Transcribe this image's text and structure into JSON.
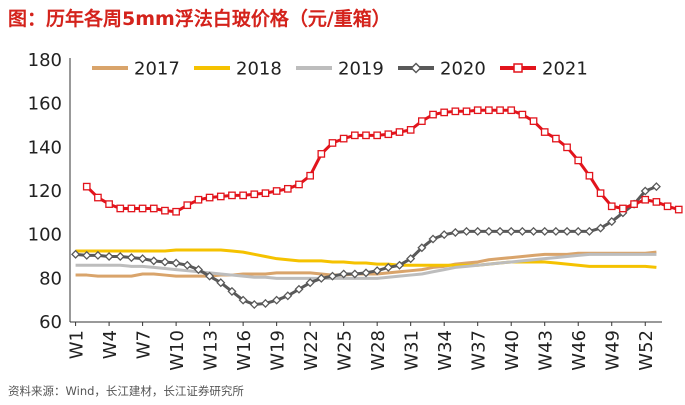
{
  "header": {
    "title": "图：历年各周5mm浮法白玻价格（元/重箱）"
  },
  "footer": {
    "source": "资料来源：Wind，长江建材，长江证券研究所"
  },
  "chart_data": {
    "type": "line",
    "title": "图：历年各周5mm浮法白玻价格（元/重箱）",
    "xlabel": "",
    "ylabel": "",
    "ylim": [
      60,
      180
    ],
    "yticks": [
      60,
      80,
      100,
      120,
      140,
      160,
      180
    ],
    "grid": false,
    "legend_position": "top",
    "x_tick_labels": [
      "W1",
      "W4",
      "W7",
      "W10",
      "W13",
      "W16",
      "W19",
      "W22",
      "W25",
      "W28",
      "W31",
      "W34",
      "W37",
      "W40",
      "W43",
      "W46",
      "W49",
      "W52"
    ],
    "x_tick_weeks": [
      1,
      4,
      7,
      10,
      13,
      16,
      19,
      22,
      25,
      28,
      31,
      34,
      37,
      40,
      43,
      46,
      49,
      52
    ],
    "series": [
      {
        "name": "2017",
        "color": "#d9a46b",
        "marker": "none",
        "start_week": 1,
        "values": [
          81.5,
          81.5,
          81.0,
          81.0,
          81.0,
          81.0,
          82.0,
          82.0,
          81.5,
          81.0,
          81.0,
          81.0,
          81.0,
          81.5,
          81.5,
          82.0,
          82.0,
          82.0,
          82.5,
          82.5,
          82.5,
          82.5,
          82.0,
          81.5,
          81.5,
          82.0,
          82.0,
          82.0,
          82.5,
          83.0,
          83.5,
          84.0,
          85.0,
          85.5,
          86.5,
          87.0,
          87.5,
          88.5,
          89.0,
          89.5,
          90.0,
          90.5,
          91.0,
          91.0,
          91.0,
          91.5,
          91.5,
          91.5,
          91.5,
          91.5,
          91.5,
          91.5,
          92.0
        ]
      },
      {
        "name": "2018",
        "color": "#f5c200",
        "marker": "none",
        "start_week": 1,
        "values": [
          92.5,
          92.5,
          92.5,
          92.5,
          92.5,
          92.5,
          92.5,
          92.5,
          92.5,
          93.0,
          93.0,
          93.0,
          93.0,
          93.0,
          92.5,
          92.0,
          91.0,
          90.0,
          89.0,
          88.5,
          88.0,
          88.0,
          88.0,
          87.5,
          87.5,
          87.0,
          87.0,
          86.5,
          86.5,
          86.0,
          86.0,
          86.0,
          86.0,
          86.0,
          86.0,
          86.0,
          86.0,
          86.5,
          87.0,
          87.5,
          87.5,
          87.5,
          87.5,
          87.0,
          86.5,
          86.0,
          85.5,
          85.5,
          85.5,
          85.5,
          85.5,
          85.5,
          85.0
        ]
      },
      {
        "name": "2019",
        "color": "#bdbdbd",
        "marker": "none",
        "start_week": 1,
        "values": [
          86.0,
          86.0,
          86.0,
          86.0,
          86.0,
          85.5,
          85.5,
          85.0,
          84.5,
          84.0,
          83.5,
          83.0,
          82.5,
          82.0,
          81.5,
          81.0,
          80.5,
          80.5,
          80.0,
          80.0,
          80.0,
          80.0,
          80.0,
          80.0,
          80.0,
          80.0,
          80.0,
          80.0,
          80.5,
          81.0,
          81.5,
          82.0,
          83.0,
          84.0,
          85.0,
          85.5,
          86.0,
          86.5,
          87.0,
          87.5,
          88.0,
          88.5,
          89.0,
          89.5,
          90.0,
          90.5,
          91.0,
          91.0,
          91.0,
          91.0,
          91.0,
          91.0,
          91.0
        ]
      },
      {
        "name": "2020",
        "color": "#595959",
        "marker": "diamond",
        "start_week": 1,
        "values": [
          91.0,
          90.5,
          90.5,
          90.0,
          90.0,
          89.5,
          89.0,
          88.0,
          87.5,
          87.0,
          86.0,
          84.0,
          81.0,
          78.0,
          74.0,
          70.0,
          68.0,
          68.5,
          70.0,
          72.0,
          75.0,
          78.0,
          80.0,
          81.0,
          82.0,
          82.0,
          82.5,
          83.5,
          85.0,
          86.0,
          89.0,
          94.0,
          98.0,
          100.0,
          101.0,
          101.5,
          101.5,
          101.5,
          101.5,
          101.5,
          101.5,
          101.5,
          101.5,
          101.5,
          101.5,
          101.5,
          101.5,
          103.0,
          106.0,
          110.0,
          114.0,
          120.0,
          122.0
        ]
      },
      {
        "name": "2021",
        "color": "#e2141c",
        "marker": "square",
        "start_week": 2,
        "values": [
          122.0,
          117.0,
          114.0,
          112.0,
          112.0,
          112.0,
          112.0,
          111.0,
          110.5,
          113.5,
          116.0,
          117.0,
          117.5,
          118.0,
          118.0,
          118.5,
          119.0,
          120.0,
          121.0,
          123.0,
          127.0,
          137.0,
          142.0,
          144.0,
          145.5,
          145.5,
          145.5,
          146.0,
          147.0,
          148.0,
          152.0,
          155.0,
          156.0,
          156.5,
          156.5,
          157.0,
          157.0,
          157.0,
          157.0,
          155.0,
          152.0,
          147.0,
          144.0,
          140.0,
          134.0,
          127.0,
          119.0,
          113.0,
          112.0,
          114.0,
          116.0,
          115.0,
          113.0,
          111.5
        ]
      }
    ]
  }
}
